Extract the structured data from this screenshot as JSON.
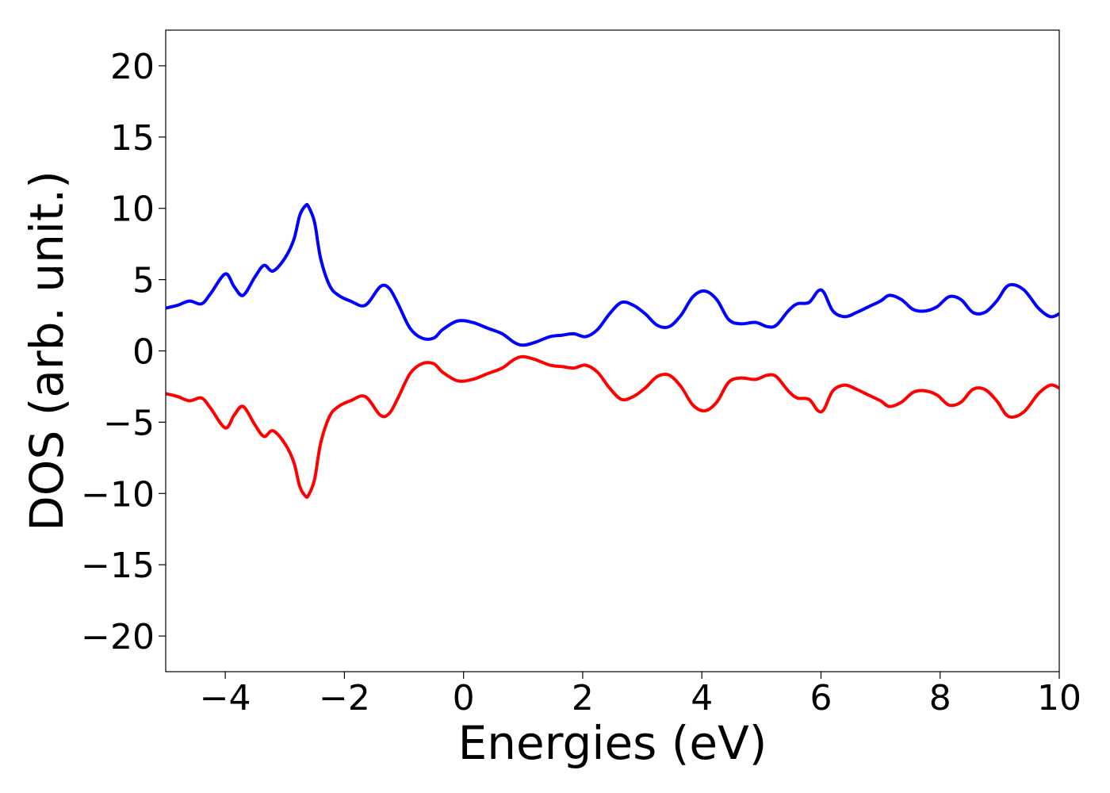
{
  "chart_data": {
    "type": "line",
    "title": "",
    "xlabel": "Energies (eV)",
    "ylabel": "DOS (arb. unit.)",
    "xlim": [
      -5,
      10
    ],
    "ylim": [
      -22.5,
      22.5
    ],
    "grid": false,
    "x_ticks": [
      -4,
      -2,
      0,
      2,
      4,
      6,
      8,
      10
    ],
    "x_tick_labels": [
      "−4",
      "−2",
      "0",
      "2",
      "4",
      "6",
      "8",
      "10"
    ],
    "y_ticks": [
      20,
      15,
      10,
      5,
      0,
      -5,
      -10,
      -15,
      -20
    ],
    "y_tick_labels": [
      "20",
      "15",
      "10",
      "5",
      "0",
      "−5",
      "−10",
      "−15",
      "−20"
    ],
    "series": [
      {
        "color": "#0000ff",
        "x": [
          -5.0,
          -4.8,
          -4.6,
          -4.4,
          -4.25,
          -4.0,
          -3.85,
          -3.7,
          -3.5,
          -3.35,
          -3.2,
          -3.0,
          -2.85,
          -2.75,
          -2.65,
          -2.6,
          -2.5,
          -2.4,
          -2.25,
          -2.1,
          -1.9,
          -1.65,
          -1.4,
          -1.25,
          -1.1,
          -0.9,
          -0.7,
          -0.5,
          -0.35,
          -0.1,
          0.15,
          0.4,
          0.65,
          0.85,
          1.0,
          1.2,
          1.45,
          1.65,
          1.85,
          2.05,
          2.25,
          2.45,
          2.65,
          2.85,
          3.05,
          3.25,
          3.45,
          3.65,
          3.85,
          4.05,
          4.25,
          4.45,
          4.65,
          4.9,
          5.1,
          5.25,
          5.45,
          5.6,
          5.8,
          5.95,
          6.05,
          6.2,
          6.4,
          6.6,
          6.8,
          7.0,
          7.15,
          7.35,
          7.55,
          7.75,
          7.95,
          8.15,
          8.35,
          8.55,
          8.75,
          8.95,
          9.15,
          9.4,
          9.65,
          9.85,
          10.0
        ],
        "values": [
          3.0,
          3.2,
          3.5,
          3.3,
          4.0,
          5.4,
          4.5,
          3.9,
          5.2,
          6.0,
          5.6,
          6.5,
          7.8,
          9.5,
          10.2,
          10.1,
          9.0,
          6.5,
          4.6,
          3.9,
          3.5,
          3.2,
          4.5,
          4.4,
          3.3,
          1.6,
          0.9,
          0.9,
          1.5,
          2.1,
          2.0,
          1.6,
          1.2,
          0.6,
          0.4,
          0.6,
          1.0,
          1.1,
          1.2,
          1.0,
          1.5,
          2.6,
          3.4,
          3.2,
          2.6,
          1.8,
          1.7,
          2.5,
          3.8,
          4.2,
          3.6,
          2.2,
          1.9,
          2.0,
          1.7,
          1.8,
          2.8,
          3.3,
          3.4,
          4.2,
          4.1,
          2.8,
          2.4,
          2.7,
          3.1,
          3.5,
          3.9,
          3.6,
          2.9,
          2.8,
          3.1,
          3.8,
          3.6,
          2.7,
          2.7,
          3.5,
          4.6,
          4.3,
          3.0,
          2.4,
          2.6
        ]
      },
      {
        "color": "#ff0000",
        "x": [
          -5.0,
          -4.8,
          -4.6,
          -4.4,
          -4.25,
          -4.0,
          -3.85,
          -3.7,
          -3.5,
          -3.35,
          -3.2,
          -3.0,
          -2.85,
          -2.75,
          -2.65,
          -2.6,
          -2.5,
          -2.4,
          -2.25,
          -2.1,
          -1.9,
          -1.65,
          -1.4,
          -1.25,
          -1.1,
          -0.9,
          -0.7,
          -0.5,
          -0.35,
          -0.1,
          0.15,
          0.4,
          0.65,
          0.85,
          1.0,
          1.2,
          1.45,
          1.65,
          1.85,
          2.05,
          2.25,
          2.45,
          2.65,
          2.85,
          3.05,
          3.25,
          3.45,
          3.65,
          3.85,
          4.05,
          4.25,
          4.45,
          4.65,
          4.9,
          5.1,
          5.25,
          5.45,
          5.6,
          5.8,
          5.95,
          6.05,
          6.2,
          6.4,
          6.6,
          6.8,
          7.0,
          7.15,
          7.35,
          7.55,
          7.75,
          7.95,
          8.15,
          8.35,
          8.55,
          8.75,
          8.95,
          9.15,
          9.4,
          9.65,
          9.85,
          10.0
        ],
        "values": [
          -3.0,
          -3.2,
          -3.5,
          -3.3,
          -4.0,
          -5.4,
          -4.5,
          -3.9,
          -5.2,
          -6.0,
          -5.6,
          -6.5,
          -7.8,
          -9.5,
          -10.2,
          -10.1,
          -9.0,
          -6.5,
          -4.6,
          -3.9,
          -3.5,
          -3.2,
          -4.5,
          -4.4,
          -3.3,
          -1.6,
          -0.9,
          -0.9,
          -1.5,
          -2.1,
          -2.0,
          -1.6,
          -1.2,
          -0.6,
          -0.4,
          -0.6,
          -1.0,
          -1.1,
          -1.2,
          -1.0,
          -1.5,
          -2.6,
          -3.4,
          -3.2,
          -2.6,
          -1.8,
          -1.7,
          -2.5,
          -3.8,
          -4.2,
          -3.6,
          -2.2,
          -1.9,
          -2.0,
          -1.7,
          -1.8,
          -2.8,
          -3.3,
          -3.4,
          -4.2,
          -4.1,
          -2.8,
          -2.4,
          -2.7,
          -3.1,
          -3.5,
          -3.9,
          -3.6,
          -2.9,
          -2.8,
          -3.1,
          -3.8,
          -3.6,
          -2.7,
          -2.7,
          -3.5,
          -4.6,
          -4.3,
          -3.0,
          -2.4,
          -2.6
        ]
      }
    ]
  }
}
